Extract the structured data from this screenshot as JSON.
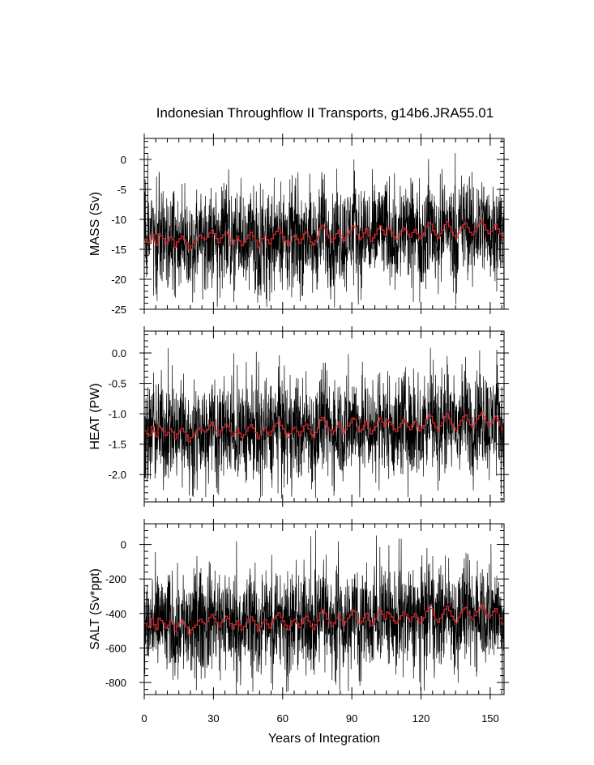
{
  "title": "Indonesian Throughflow II Transports, g14b6.JRA55.01",
  "xlabel": "Years of Integration",
  "colors": {
    "raw": "#000000",
    "smooth": "#c8282a"
  },
  "chart_data": [
    {
      "type": "line",
      "ylabel": "MASS (Sv)",
      "xlim": [
        0,
        156
      ],
      "ylim": [
        -25,
        3.5
      ],
      "xticks": [
        0,
        30,
        60,
        90,
        120,
        150
      ],
      "xtick_labels": [
        "0",
        "30",
        "60",
        "90",
        "120",
        "150"
      ],
      "yticks": [
        0,
        -5,
        -10,
        -15,
        -20,
        -25
      ],
      "ytick_labels": [
        "0",
        "-5",
        "-10",
        "-15",
        "-20",
        "-25"
      ],
      "monthly_mean": -12.5,
      "monthly_range": [
        -24.8,
        2.5
      ],
      "annual_mean": [
        -13.3,
        -13.8,
        -14.0,
        -12.5,
        -13.5,
        -14.3,
        -12.4,
        -12.8,
        -13.2,
        -14.1,
        -13.6,
        -12.9,
        -13.4,
        -14.6,
        -13.8,
        -13.2,
        -12.8,
        -13.4,
        -13.9,
        -15.1,
        -14.4,
        -14.0,
        -13.6,
        -12.9,
        -12.6,
        -13.1,
        -13.4,
        -13.0,
        -12.3,
        -11.8,
        -12.4,
        -13.2,
        -13.9,
        -13.1,
        -12.6,
        -12.1,
        -12.5,
        -13.3,
        -14.2,
        -13.5,
        -12.8,
        -13.6,
        -14.4,
        -13.8,
        -13.2,
        -12.6,
        -12.2,
        -12.8,
        -13.5,
        -14.6,
        -13.9,
        -13.2,
        -12.7,
        -13.4,
        -14.1,
        -13.2,
        -12.5,
        -12.0,
        -11.5,
        -12.3,
        -12.9,
        -13.6,
        -14.4,
        -13.7,
        -12.9,
        -12.6,
        -13.3,
        -14.0,
        -13.3,
        -12.4,
        -12.1,
        -12.9,
        -13.8,
        -14.3,
        -13.5,
        -12.8,
        -11.5,
        -11.0,
        -11.6,
        -12.6,
        -13.1,
        -13.8,
        -13.2,
        -12.4,
        -11.8,
        -12.7,
        -13.6,
        -13.0,
        -12.4,
        -11.9,
        -11.1,
        -11.3,
        -12.5,
        -13.4,
        -13.0,
        -12.3,
        -11.6,
        -12.8,
        -13.7,
        -13.1,
        -12.5,
        -11.6,
        -11.1,
        -11.8,
        -12.6,
        -11.4,
        -11.7,
        -12.2,
        -12.9,
        -13.3,
        -12.6,
        -12.0,
        -11.4,
        -11.8,
        -12.5,
        -13.0,
        -12.2,
        -11.7,
        -12.4,
        -13.2,
        -12.8,
        -12.3,
        -11.3,
        -10.5,
        -10.8,
        -11.9,
        -12.6,
        -13.1,
        -12.4,
        -11.8,
        -10.9,
        -10.4,
        -11.2,
        -12.1,
        -12.7,
        -13.1,
        -12.3,
        -11.5,
        -10.9,
        -10.6,
        -11.4,
        -12.2,
        -12.6,
        -12.0,
        -11.3,
        -10.7,
        -10.2,
        -10.9,
        -11.8,
        -12.4,
        -12.0,
        -11.3,
        -10.8,
        -11.6,
        -12.4,
        -13.4
      ]
    },
    {
      "type": "line",
      "ylabel": "HEAT (PW)",
      "xlim": [
        0,
        156
      ],
      "ylim": [
        -2.45,
        0.36
      ],
      "xticks": [
        0,
        30,
        60,
        90,
        120,
        150
      ],
      "xtick_labels": [
        "0",
        "30",
        "60",
        "90",
        "120",
        "150"
      ],
      "yticks": [
        0.0,
        -0.5,
        -1.0,
        -1.5,
        -2.0
      ],
      "ytick_labels": [
        "0.0",
        "-0.5",
        "-1.0",
        "-1.5",
        "-2.0"
      ],
      "monthly_mean": -1.22,
      "monthly_range": [
        -2.4,
        0.1
      ],
      "annual_mean": [
        -1.28,
        -1.33,
        -1.36,
        -1.21,
        -1.3,
        -1.38,
        -1.2,
        -1.24,
        -1.28,
        -1.36,
        -1.31,
        -1.25,
        -1.3,
        -1.41,
        -1.33,
        -1.27,
        -1.24,
        -1.3,
        -1.35,
        -1.46,
        -1.39,
        -1.35,
        -1.31,
        -1.25,
        -1.22,
        -1.27,
        -1.3,
        -1.26,
        -1.19,
        -1.14,
        -1.2,
        -1.28,
        -1.35,
        -1.27,
        -1.22,
        -1.17,
        -1.21,
        -1.29,
        -1.37,
        -1.31,
        -1.24,
        -1.32,
        -1.39,
        -1.34,
        -1.28,
        -1.22,
        -1.18,
        -1.24,
        -1.31,
        -1.41,
        -1.35,
        -1.28,
        -1.23,
        -1.3,
        -1.36,
        -1.28,
        -1.21,
        -1.16,
        -1.11,
        -1.19,
        -1.25,
        -1.32,
        -1.39,
        -1.33,
        -1.25,
        -1.22,
        -1.29,
        -1.36,
        -1.29,
        -1.2,
        -1.17,
        -1.25,
        -1.34,
        -1.38,
        -1.31,
        -1.24,
        -1.11,
        -1.06,
        -1.12,
        -1.22,
        -1.27,
        -1.34,
        -1.28,
        -1.2,
        -1.14,
        -1.23,
        -1.32,
        -1.26,
        -1.2,
        -1.15,
        -1.07,
        -1.09,
        -1.21,
        -1.3,
        -1.26,
        -1.19,
        -1.12,
        -1.24,
        -1.33,
        -1.27,
        -1.21,
        -1.12,
        -1.07,
        -1.14,
        -1.22,
        -1.1,
        -1.13,
        -1.18,
        -1.25,
        -1.29,
        -1.22,
        -1.16,
        -1.1,
        -1.14,
        -1.21,
        -1.26,
        -1.18,
        -1.13,
        -1.2,
        -1.28,
        -1.24,
        -1.19,
        -1.09,
        -1.01,
        -1.04,
        -1.15,
        -1.22,
        -1.27,
        -1.2,
        -1.14,
        -1.05,
        -1.0,
        -1.08,
        -1.17,
        -1.23,
        -1.27,
        -1.19,
        -1.11,
        -1.05,
        -1.02,
        -1.1,
        -1.18,
        -1.22,
        -1.16,
        -1.09,
        -1.03,
        -0.98,
        -1.05,
        -1.14,
        -1.2,
        -1.16,
        -1.09,
        -1.04,
        -1.12,
        -1.2,
        -1.3
      ]
    },
    {
      "type": "line",
      "ylabel": "SALT (Sv*ppt)",
      "xlim": [
        0,
        156
      ],
      "ylim": [
        -870,
        120
      ],
      "xticks": [
        0,
        30,
        60,
        90,
        120,
        150
      ],
      "xtick_labels": [
        "0",
        "30",
        "60",
        "90",
        "120",
        "150"
      ],
      "yticks": [
        0,
        -200,
        -400,
        -600,
        -800
      ],
      "ytick_labels": [
        "0",
        "-200",
        "-400",
        "-600",
        "-800"
      ],
      "monthly_mean": -430,
      "monthly_range": [
        -860,
        90
      ],
      "annual_mean": [
        -458,
        -475,
        -482,
        -430,
        -465,
        -492,
        -427,
        -441,
        -455,
        -485,
        -468,
        -444,
        -461,
        -502,
        -475,
        -454,
        -441,
        -461,
        -478,
        -520,
        -495,
        -482,
        -468,
        -444,
        -434,
        -451,
        -461,
        -447,
        -423,
        -406,
        -427,
        -454,
        -478,
        -451,
        -434,
        -416,
        -430,
        -458,
        -489,
        -465,
        -441,
        -468,
        -495,
        -475,
        -454,
        -434,
        -420,
        -441,
        -465,
        -502,
        -478,
        -454,
        -437,
        -461,
        -485,
        -454,
        -430,
        -413,
        -396,
        -423,
        -444,
        -468,
        -495,
        -471,
        -444,
        -434,
        -458,
        -482,
        -458,
        -427,
        -416,
        -444,
        -475,
        -492,
        -465,
        -441,
        -396,
        -378,
        -399,
        -434,
        -451,
        -475,
        -454,
        -427,
        -406,
        -437,
        -468,
        -447,
        -427,
        -409,
        -382,
        -389,
        -430,
        -461,
        -447,
        -423,
        -399,
        -440,
        -471,
        -451,
        -430,
        -399,
        -382,
        -406,
        -434,
        -392,
        -402,
        -420,
        -444,
        -458,
        -434,
        -413,
        -392,
        -406,
        -430,
        -447,
        -420,
        -402,
        -427,
        -454,
        -440,
        -423,
        -389,
        -361,
        -372,
        -409,
        -434,
        -451,
        -427,
        -406,
        -375,
        -358,
        -385,
        -416,
        -437,
        -451,
        -423,
        -396,
        -375,
        -365,
        -392,
        -420,
        -434,
        -413,
        -389,
        -368,
        -351,
        -375,
        -406,
        -427,
        -413,
        -389,
        -372,
        -399,
        -427,
        -461
      ]
    }
  ]
}
